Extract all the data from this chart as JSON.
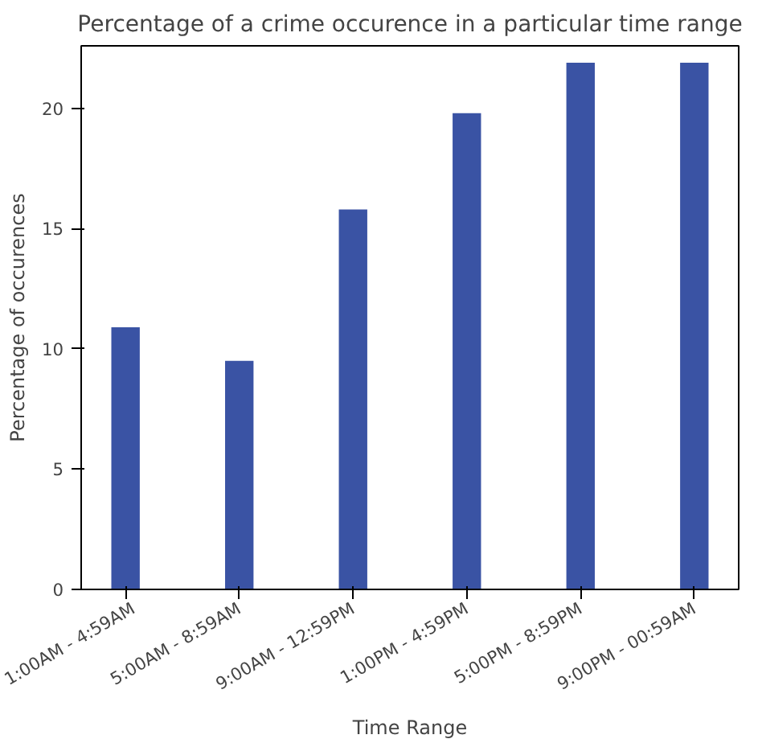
{
  "chart_data": {
    "type": "bar",
    "title": "Percentage of a crime occurence in a particular time range",
    "xlabel": "Time Range",
    "ylabel": "Percentage of occurences",
    "categories": [
      "1:00AM - 4:59AM",
      "5:00AM - 8:59AM",
      "9:00AM - 12:59PM",
      "1:00PM - 4:59PM",
      "5:00PM - 8:59PM",
      "9:00PM - 00:59AM"
    ],
    "values": [
      10.9,
      9.5,
      15.8,
      19.8,
      21.9,
      21.9
    ],
    "color": "#3a53a4",
    "ylim": [
      0,
      22.6
    ],
    "yticks": [
      0,
      5,
      10,
      15,
      20
    ],
    "grid": false
  }
}
